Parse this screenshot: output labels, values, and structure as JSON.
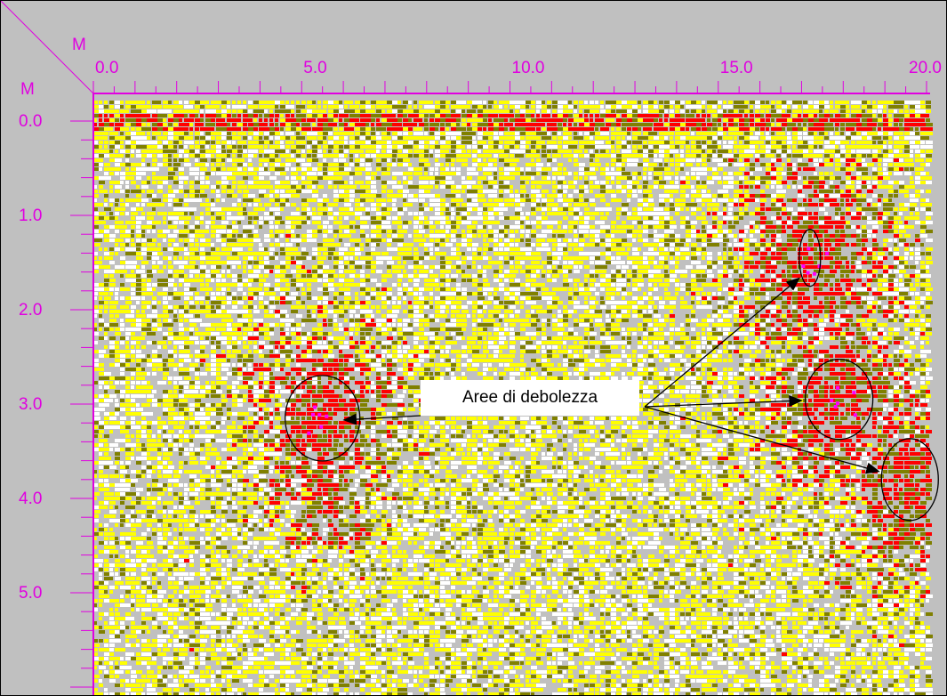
{
  "chart_data": {
    "type": "heatmap",
    "title": "",
    "x_unit_label": "M",
    "y_unit_label": "M",
    "x_ticks": [
      "0.0",
      "5.0",
      "10.0",
      "15.0",
      "20.0"
    ],
    "y_ticks": [
      "0.0",
      "1.0",
      "2.0",
      "3.0",
      "4.0",
      "5.0"
    ],
    "xlim": [
      0,
      20
    ],
    "ylim": [
      0,
      5.6
    ],
    "annotation": {
      "text": "Aree di debolezza",
      "anomalies": [
        {
          "x": 5.5,
          "y": 3.15
        },
        {
          "x": 17.2,
          "y": 1.45
        },
        {
          "x": 17.9,
          "y": 2.95
        },
        {
          "x": 19.6,
          "y": 3.8
        }
      ]
    },
    "palette": {
      "background": "#c0c0c0",
      "white": "#ffffff",
      "yellow": "#ffff00",
      "olive": "#808000",
      "red": "#ff0000",
      "magenta": "#ff00ff",
      "axis": "#e000e0"
    }
  }
}
